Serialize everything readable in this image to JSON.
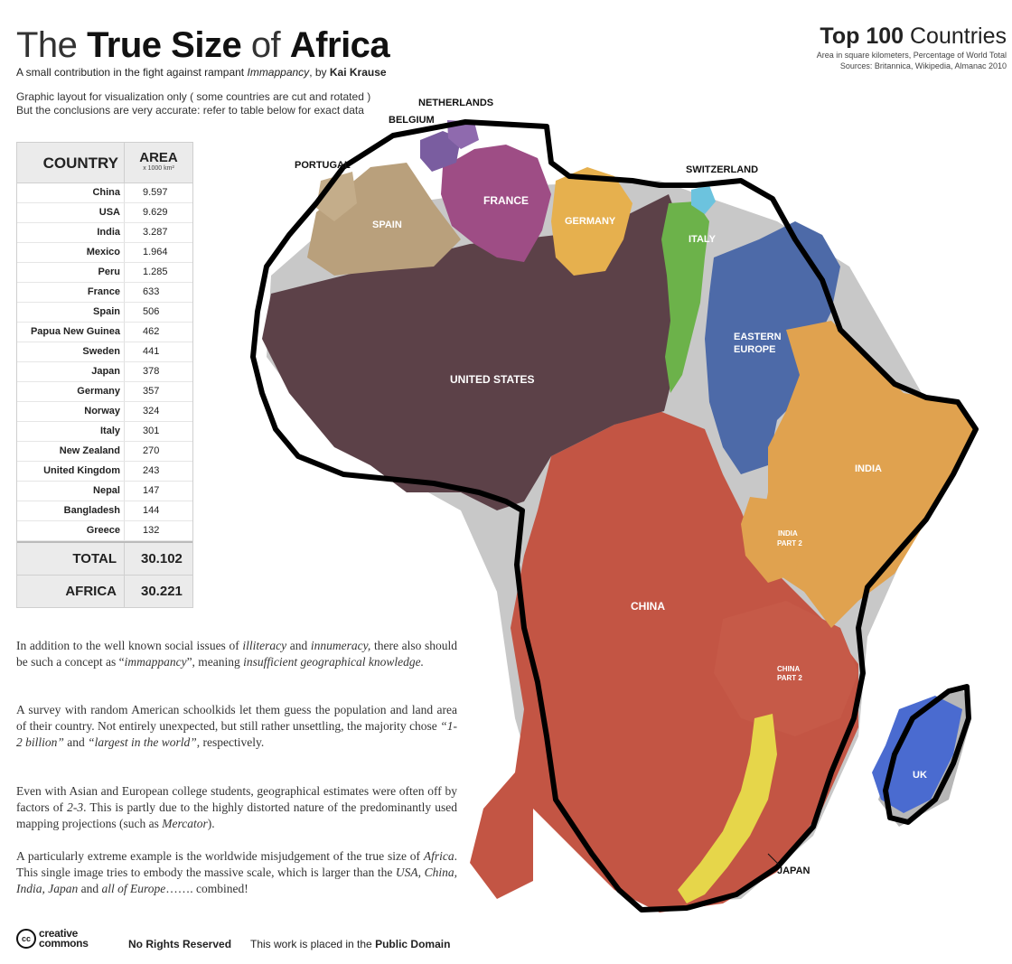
{
  "header": {
    "title_pre": "The",
    "title_bold1": "True Size",
    "title_mid": "of",
    "title_bold2": "Africa",
    "subtitle_pre": "A small contribution in the fight against rampant",
    "subtitle_term": "Immappancy",
    "subtitle_mid": ", by",
    "subtitle_author": "Kai Krause",
    "note1": "Graphic layout for visualization only ( some countries are cut and rotated )",
    "note2": "But the conclusions are very accurate: refer to table below for exact data"
  },
  "top100": {
    "bold": "Top 100",
    "rest": "Countries",
    "line1": "Area in square kilometers, Percentage of World Total",
    "line2": "Sources:  Britannica, Wikipedia, Almanac 2010"
  },
  "table": {
    "col_country": "COUNTRY",
    "col_area": "AREA",
    "col_area_unit": "x 1000 km²",
    "rows": [
      {
        "country": "China",
        "area": "9.597"
      },
      {
        "country": "USA",
        "area": "9.629"
      },
      {
        "country": "India",
        "area": "3.287"
      },
      {
        "country": "Mexico",
        "area": "1.964"
      },
      {
        "country": "Peru",
        "area": "1.285"
      },
      {
        "country": "France",
        "area": "633"
      },
      {
        "country": "Spain",
        "area": "506"
      },
      {
        "country": "Papua New Guinea",
        "area": "462"
      },
      {
        "country": "Sweden",
        "area": "441"
      },
      {
        "country": "Japan",
        "area": "378"
      },
      {
        "country": "Germany",
        "area": "357"
      },
      {
        "country": "Norway",
        "area": "324"
      },
      {
        "country": "Italy",
        "area": "301"
      },
      {
        "country": "New Zealand",
        "area": "270"
      },
      {
        "country": "United Kingdom",
        "area": "243"
      },
      {
        "country": "Nepal",
        "area": "147"
      },
      {
        "country": "Bangladesh",
        "area": "144"
      },
      {
        "country": "Greece",
        "area": "132"
      }
    ],
    "total_label": "TOTAL",
    "total_value": "30.102",
    "africa_label": "AFRICA",
    "africa_value": "30.221"
  },
  "paragraphs": {
    "p1_a": "In addition to the well known social issues of ",
    "p1_b": "illiteracy",
    "p1_c": " and ",
    "p1_d": "innumeracy,",
    "p1_e": " there also should be such a concept as “",
    "p1_f": "immappancy",
    "p1_g": "”, meaning ",
    "p1_h": "insufficient geographical knowledge.",
    "p2_a": "A survey with random American schoolkids let them guess the population and land area of their country. Not entirely unexpected, but still rather unsettling, the majority chose ",
    "p2_b": "“1-2 billion”",
    "p2_c": " and ",
    "p2_d": "“largest in the world”",
    "p2_e": ", respectively.",
    "p3_a": "Even with Asian and European college students, geographical estimates were often off by factors of ",
    "p3_b": "2-3",
    "p3_c": ". This is partly due to the highly distorted nature of the predominantly used mapping projections (such as ",
    "p3_d": "Mercator",
    "p3_e": ").",
    "p4_a": "A particularly extreme example is the worldwide misjudgement of the true size of ",
    "p4_b": "Africa",
    "p4_c": ". This single image tries to embody the massive scale, which is larger than the ",
    "p4_d": "USA, China, India, Japan",
    "p4_e": " and ",
    "p4_f": "all of Europe",
    "p4_g": "……. combined!"
  },
  "footer": {
    "cc_symbol": "cc",
    "cc_line1": "creative",
    "cc_line2": "commons",
    "no_rights": "No Rights Reserved",
    "pd_pre": "This work is placed in the",
    "pd_bold": "Public Domain"
  },
  "map": {
    "labels": {
      "netherlands": "NETHERLANDS",
      "belgium": "BELGIUM",
      "portugal": "PORTUGAL",
      "switzerland": "SWITZERLAND",
      "spain": "SPAIN",
      "france": "FRANCE",
      "germany": "GERMANY",
      "italy": "ITALY",
      "eastern_europe_1": "EASTERN",
      "eastern_europe_2": "EUROPE",
      "united_states": "UNITED STATES",
      "india": "INDIA",
      "india_part2_1": "INDIA",
      "india_part2_2": "PART 2",
      "china": "CHINA",
      "china_part2_1": "CHINA",
      "china_part2_2": "PART 2",
      "uk": "UK",
      "japan": "JAPAN"
    },
    "colors": {
      "usa": "#5c4148",
      "china": "#c35544",
      "india": "#e0a24f",
      "eastern_europe": "#4d6aa8",
      "spain": "#b9a07c",
      "france": "#9e4d85",
      "germany": "#e6b04e",
      "italy": "#6cb24a",
      "switzerland": "#6cc3de",
      "uk": "#4a6bd0",
      "japan": "#e6d64a",
      "belgium": "#7a5da0",
      "africa_outline": "#000000",
      "background_land": "#c8c8c8"
    }
  }
}
